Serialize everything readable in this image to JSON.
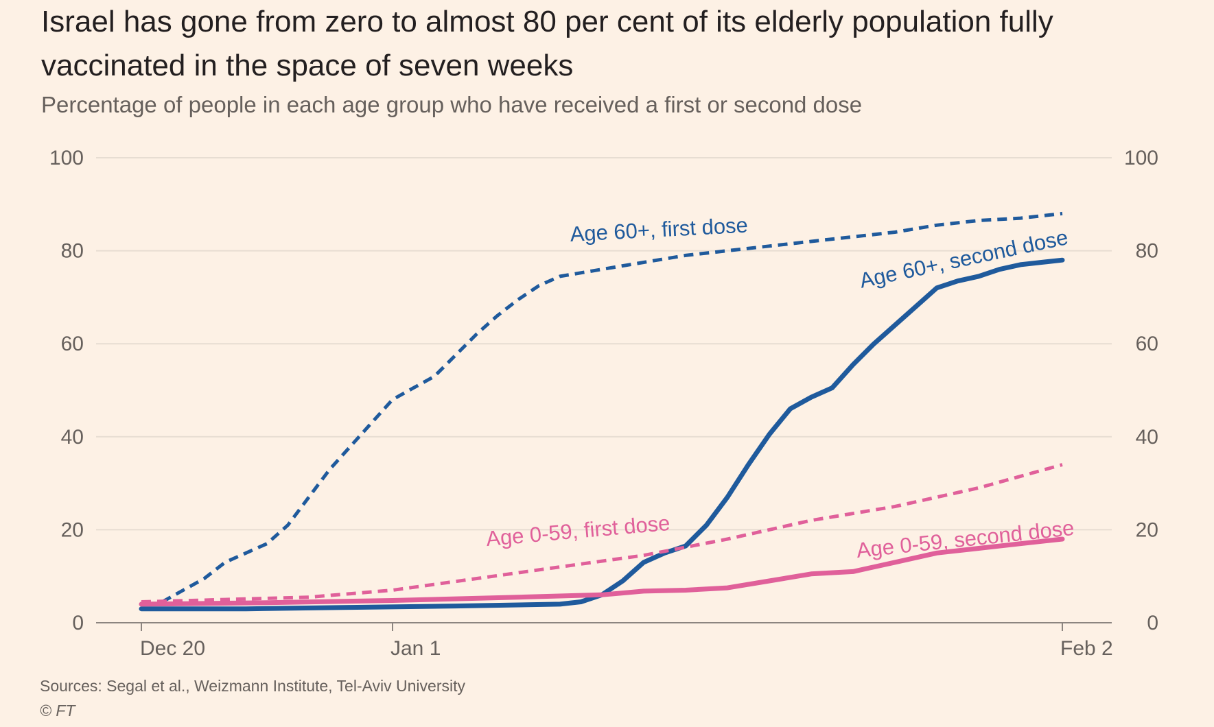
{
  "chart_data": {
    "type": "line",
    "title": "Israel has gone from zero to almost 80 per cent of its elderly population fully vaccinated in the space of seven weeks",
    "subtitle": "Percentage of people in each age group who have received a first or second dose",
    "xlabel": "",
    "ylabel": "",
    "ylim": [
      0,
      100
    ],
    "yticks": [
      0,
      20,
      40,
      60,
      80,
      100
    ],
    "yticks_right": [
      0,
      20,
      40,
      60,
      80,
      100
    ],
    "xlim": [
      -2,
      45
    ],
    "xticks": [
      {
        "x": 0,
        "label": "Dec 20"
      },
      {
        "x": 12,
        "label": "Jan 1"
      },
      {
        "x": 44,
        "label": "Feb 2"
      }
    ],
    "grid": true,
    "colors": {
      "age60": "#1f5a9c",
      "age059": "#e0609a",
      "grid": "#e7ddd2",
      "axis": "#8c8580"
    },
    "series": [
      {
        "name": "Age 60+, first dose",
        "color": "#1f5a9c",
        "dash": true,
        "x": [
          1,
          2,
          3,
          4,
          5,
          6,
          7,
          8,
          9,
          10,
          11,
          12,
          13,
          14,
          15,
          16,
          17,
          18,
          19,
          20,
          22,
          24,
          26,
          28,
          30,
          32,
          34,
          36,
          38,
          40,
          42,
          44
        ],
        "y": [
          4.5,
          7,
          9.5,
          13,
          15,
          17,
          21,
          27,
          33,
          38,
          43,
          48,
          50.5,
          53,
          57.5,
          62,
          66,
          69.5,
          72.5,
          74.5,
          76,
          77.5,
          79,
          80,
          81,
          82,
          83,
          84,
          85.5,
          86.5,
          87,
          88
        ]
      },
      {
        "name": "Age 60+, second dose",
        "color": "#1f5a9c",
        "dash": false,
        "x": [
          0,
          5,
          10,
          15,
          20,
          21,
          22,
          23,
          24,
          25,
          26,
          27,
          28,
          29,
          30,
          31,
          32,
          33,
          34,
          35,
          36,
          37,
          38,
          39,
          40,
          41,
          42,
          43,
          44
        ],
        "y": [
          3,
          3,
          3.3,
          3.6,
          4,
          4.5,
          6,
          9,
          13,
          15,
          16.5,
          21,
          27,
          34,
          40.5,
          46,
          48.5,
          50.5,
          55.5,
          60,
          64,
          68,
          72,
          73.5,
          74.5,
          76,
          77,
          77.5,
          78
        ]
      },
      {
        "name": "Age 0-59, first dose",
        "color": "#e0609a",
        "dash": true,
        "x": [
          0,
          4,
          8,
          12,
          16,
          20,
          24,
          28,
          32,
          36,
          40,
          44
        ],
        "y": [
          4.5,
          5,
          5.5,
          7,
          9.5,
          12,
          14.5,
          18,
          22,
          25,
          29,
          34
        ]
      },
      {
        "name": "Age 0-59, second dose",
        "color": "#e0609a",
        "dash": false,
        "x": [
          0,
          6,
          12,
          18,
          22,
          24,
          26,
          28,
          30,
          32,
          34,
          36,
          38,
          40,
          42,
          44
        ],
        "y": [
          4,
          4.3,
          4.8,
          5.5,
          6,
          6.8,
          7,
          7.5,
          9,
          10.5,
          11,
          13,
          15,
          16,
          17,
          18
        ]
      }
    ],
    "annotations": [
      {
        "text": "Age 60+, first dose",
        "series": 0,
        "x": 20.5,
        "y": 82,
        "rotate": -3
      },
      {
        "text": "Age 60+, second dose",
        "series": 1,
        "x": 34.4,
        "y": 72,
        "rotate": -12
      },
      {
        "text": "Age 0-59, first dose",
        "series": 2,
        "x": 16.5,
        "y": 16.5,
        "rotate": -5
      },
      {
        "text": "Age 0-59, second dose",
        "series": 3,
        "x": 34.2,
        "y": 14,
        "rotate": -6
      }
    ],
    "source": "Sources: Segal et al., Weizmann Institute, Tel-Aviv University",
    "copyright": "© FT"
  }
}
